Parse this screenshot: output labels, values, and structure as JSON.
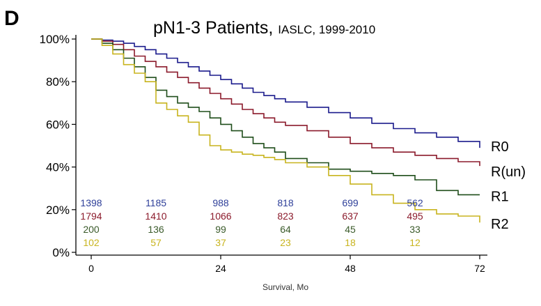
{
  "panel_label": "D",
  "title": {
    "main": "pN1-3 Patients, ",
    "suffix": "IASLC, 1999-2010"
  },
  "chart_data": {
    "type": "line",
    "subtype": "kaplan-meier-step",
    "title": "pN1-3 Patients, IASLC, 1999-2010",
    "xlabel": "Survival, Mo",
    "ylabel": "",
    "xlim": [
      -4,
      75
    ],
    "ylim": [
      0,
      100
    ],
    "x_ticks": [
      0,
      24,
      48,
      72
    ],
    "y_ticks": [
      0,
      20,
      40,
      60,
      80,
      100
    ],
    "y_tick_labels": [
      "0%",
      "20%",
      "40%",
      "60%",
      "80%",
      "100%"
    ],
    "grid": false,
    "legend": "series labels at right end of curves",
    "series": [
      {
        "name": "R0",
        "color": "#1a1a8c",
        "x": [
          0,
          2,
          4,
          6,
          8,
          10,
          12,
          14,
          16,
          18,
          20,
          22,
          24,
          26,
          28,
          30,
          32,
          34,
          36,
          40,
          44,
          48,
          52,
          56,
          60,
          64,
          68,
          72
        ],
        "y": [
          100,
          99.5,
          99,
          98,
          96.5,
          95,
          93,
          91,
          89,
          87,
          85,
          83,
          81,
          79,
          77,
          75,
          73.5,
          72,
          70.5,
          68,
          65.5,
          63,
          60.5,
          58,
          56,
          54,
          52,
          49
        ]
      },
      {
        "name": "R(un)",
        "color": "#8b1a2b",
        "x": [
          0,
          2,
          4,
          6,
          8,
          10,
          12,
          14,
          16,
          18,
          20,
          22,
          24,
          26,
          28,
          30,
          32,
          34,
          36,
          40,
          44,
          48,
          52,
          56,
          60,
          64,
          68,
          72
        ],
        "y": [
          100,
          99,
          97.5,
          95,
          92,
          89.5,
          87,
          84.5,
          82,
          79.5,
          77,
          74.5,
          72,
          69.5,
          67,
          65,
          63,
          61,
          59.5,
          57,
          54,
          51,
          49,
          47,
          45.5,
          44,
          42.5,
          40.5
        ]
      },
      {
        "name": "R1",
        "color": "#1f4d1a",
        "x": [
          0,
          2,
          4,
          6,
          8,
          10,
          12,
          14,
          16,
          18,
          20,
          22,
          24,
          26,
          28,
          30,
          32,
          34,
          36,
          40,
          44,
          48,
          52,
          56,
          60,
          64,
          68,
          72
        ],
        "y": [
          100,
          98,
          95,
          91,
          87,
          82,
          76,
          73,
          70,
          68,
          66,
          63,
          60,
          57,
          54,
          51,
          49,
          47,
          44,
          42,
          39,
          38,
          37,
          36,
          34,
          29,
          27,
          27
        ]
      },
      {
        "name": "R2",
        "color": "#c8b41e",
        "x": [
          0,
          2,
          4,
          6,
          8,
          10,
          12,
          14,
          16,
          18,
          20,
          22,
          24,
          26,
          28,
          30,
          32,
          34,
          36,
          40,
          44,
          48,
          52,
          56,
          60,
          64,
          68,
          72
        ],
        "y": [
          100,
          97,
          93,
          88,
          84,
          80,
          70,
          67,
          64,
          61,
          55,
          50,
          48,
          47,
          46,
          45.5,
          44.5,
          43.5,
          42,
          40,
          36,
          32,
          27,
          23,
          20,
          18,
          17,
          14
        ]
      }
    ],
    "numbers_at_risk": {
      "times": [
        0,
        12,
        24,
        36,
        48,
        60
      ],
      "rows": [
        {
          "series": "R0",
          "color": "#2e3f99",
          "values": [
            "1398",
            "1185",
            "988",
            "818",
            "699",
            "562"
          ]
        },
        {
          "series": "R(un)",
          "color": "#8b1a2b",
          "values": [
            "1794",
            "1410",
            "1066",
            "823",
            "637",
            "495"
          ]
        },
        {
          "series": "R1",
          "color": "#3a5a2a",
          "values": [
            "200",
            "136",
            "99",
            "64",
            "45",
            "33"
          ]
        },
        {
          "series": "R2",
          "color": "#c8b41e",
          "values": [
            "102",
            "57",
            "37",
            "23",
            "18",
            "12"
          ]
        }
      ]
    }
  }
}
